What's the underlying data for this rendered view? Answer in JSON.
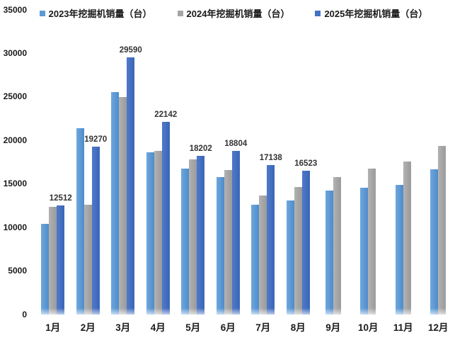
{
  "chart_data": {
    "type": "bar",
    "title": "",
    "xlabel": "",
    "ylabel": "",
    "categories": [
      "1月",
      "2月",
      "3月",
      "4月",
      "5月",
      "6月",
      "7月",
      "8月",
      "9月",
      "10月",
      "11月",
      "12月"
    ],
    "series": [
      {
        "name": "2023年挖掘机销量（台）",
        "color": "#5B9BD5",
        "gradient": [
          "#6FA7DD",
          "#4E8CCB"
        ],
        "values": [
          10443,
          21450,
          25578,
          18624,
          16809,
          15766,
          12606,
          13104,
          14283,
          14584,
          14925,
          16698
        ],
        "show_data_labels": false
      },
      {
        "name": "2024年挖掘机销量（台）",
        "color": "#A6A6A6",
        "gradient": [
          "#B2B2B2",
          "#9B9B9B"
        ],
        "values": [
          12376,
          12608,
          24980,
          18822,
          17824,
          16603,
          13690,
          14647,
          15831,
          16791,
          17590,
          19369
        ],
        "show_data_labels": false
      },
      {
        "name": "2025年挖掘机销量（台）",
        "color": "#4472C4",
        "gradient": [
          "#5079C9",
          "#3A66B8"
        ],
        "values": [
          12512,
          19270,
          29590,
          22142,
          18202,
          18804,
          17138,
          16523,
          null,
          null,
          null,
          null
        ],
        "show_data_labels": true
      }
    ],
    "ylim": [
      0,
      35000
    ],
    "ytick_step": 5000,
    "yticks": [
      "0",
      "5000",
      "10000",
      "15000",
      "20000",
      "25000",
      "30000",
      "35000"
    ],
    "legend_position": "top",
    "grid": false,
    "background": "#FFFFFF",
    "axis_text_color": "#1A1A1A",
    "data_label_color": "#333333"
  }
}
